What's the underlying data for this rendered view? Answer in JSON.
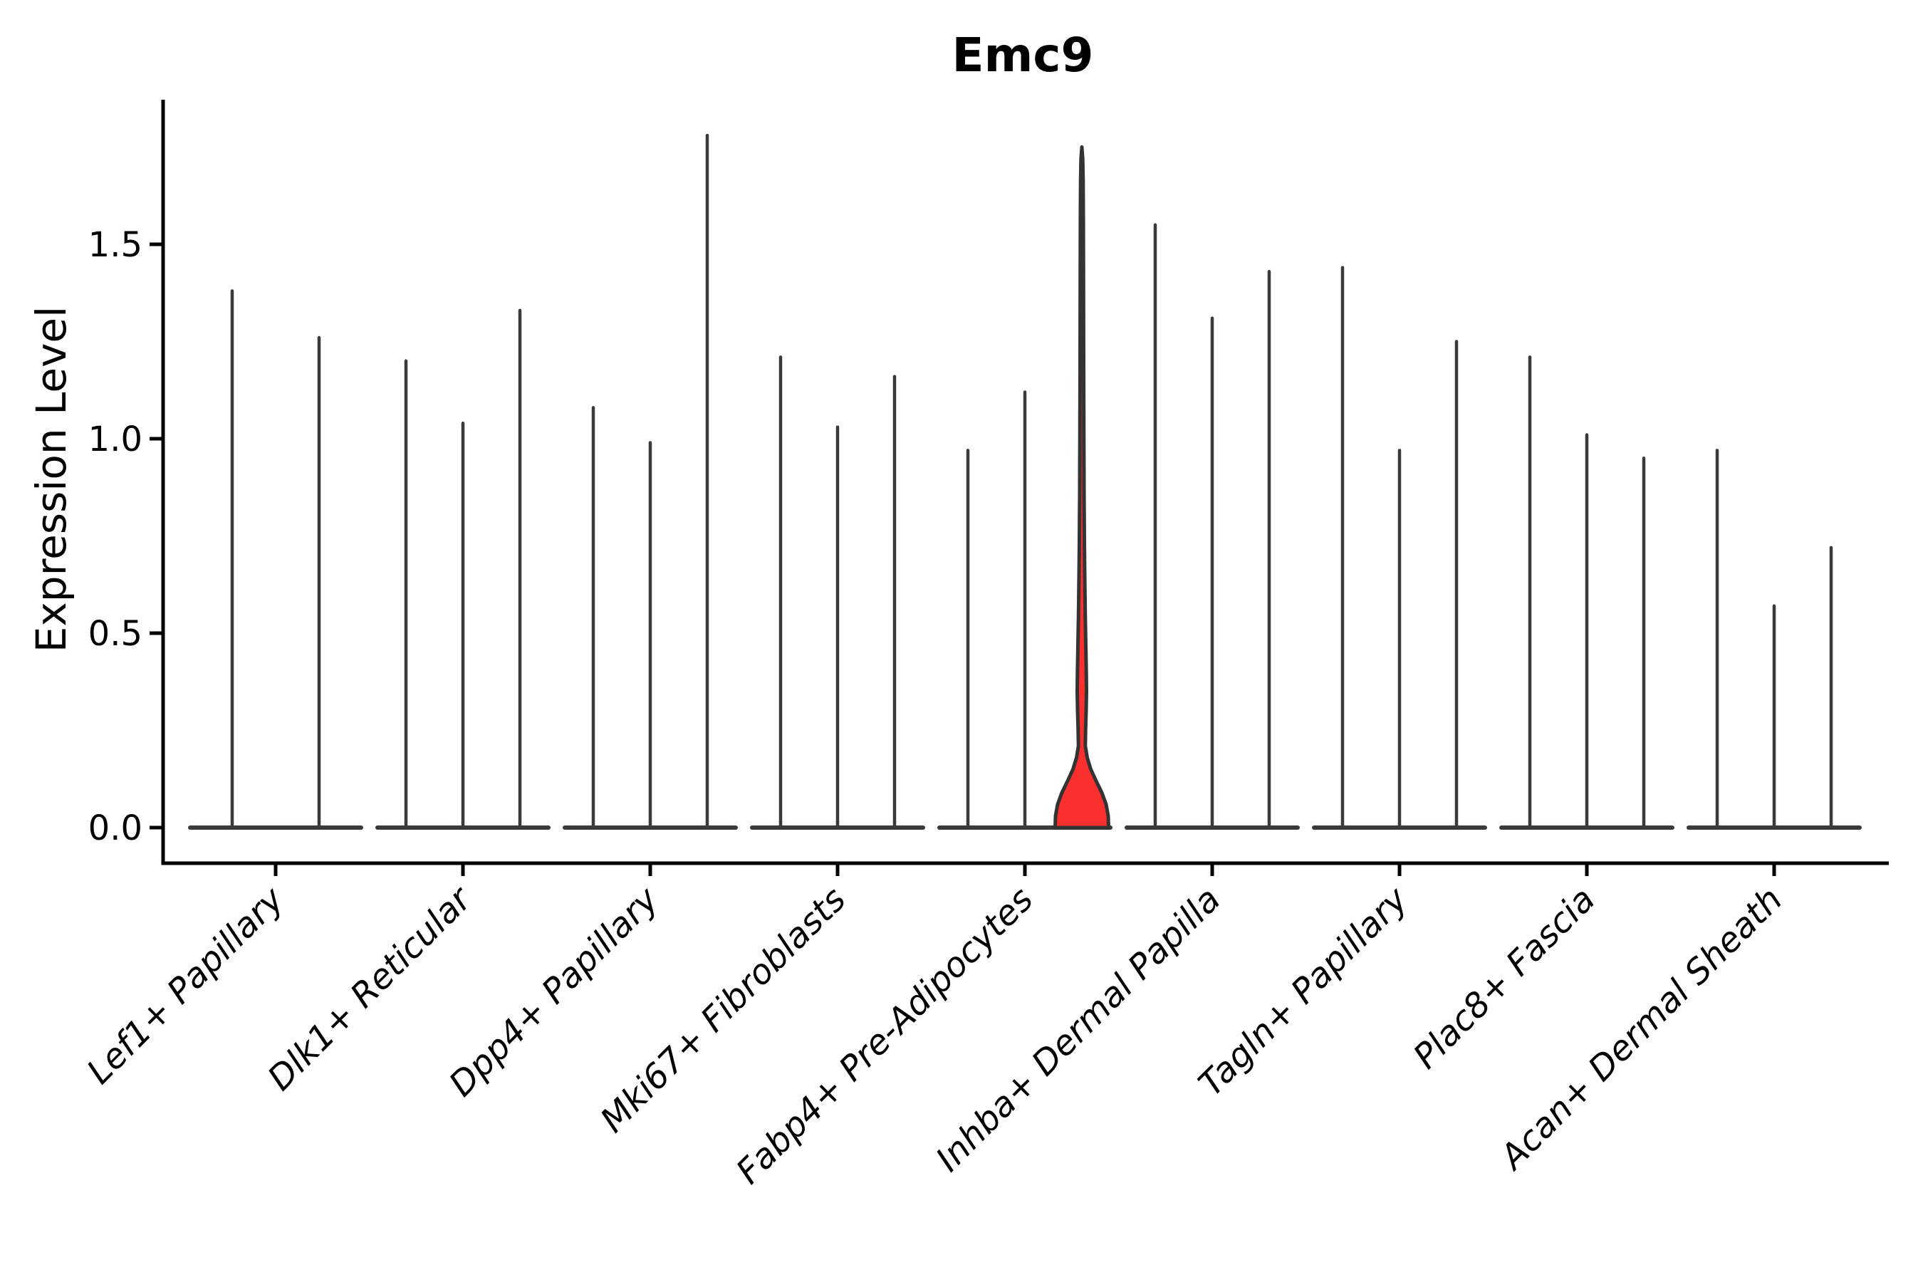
{
  "chart_data": {
    "type": "violin",
    "title": "Emc9",
    "ylabel": "Expression Level",
    "xlabel": "",
    "grid": false,
    "legend": false,
    "yticks": [
      "0.0",
      "0.5",
      "1.0",
      "1.5"
    ],
    "ylim": [
      -0.09,
      1.87
    ],
    "categories": [
      "Lef1+ Papillary",
      "Dlk1+ Reticular",
      "Dpp4+ Papillary",
      "Mki67+ Fibroblasts",
      "Fabp4+ Pre-Adipocytes",
      "Inhba+ Dermal Papilla",
      "Tagln+ Papillary",
      "Plac8+ Fascia",
      "Acan+ Dermal Sheath"
    ],
    "groups": [
      {
        "category": "Lef1+ Papillary",
        "violins": [
          {
            "max": 1.38
          },
          {
            "max": 1.26
          }
        ]
      },
      {
        "category": "Dlk1+ Reticular",
        "violins": [
          {
            "max": 1.2
          },
          {
            "max": 1.04
          },
          {
            "max": 1.33
          }
        ]
      },
      {
        "category": "Dpp4+ Papillary",
        "violins": [
          {
            "max": 1.08
          },
          {
            "max": 0.99
          },
          {
            "max": 1.78
          }
        ]
      },
      {
        "category": "Mki67+ Fibroblasts",
        "violins": [
          {
            "max": 1.21
          },
          {
            "max": 1.03
          },
          {
            "max": 1.16
          }
        ]
      },
      {
        "category": "Fabp4+ Pre-Adipocytes",
        "violins": [
          {
            "max": 0.97
          },
          {
            "max": 1.12
          },
          {
            "max": 1.75,
            "highlight": true
          }
        ]
      },
      {
        "category": "Inhba+ Dermal Papilla",
        "violins": [
          {
            "max": 1.55
          },
          {
            "max": 1.31
          },
          {
            "max": 1.43
          }
        ]
      },
      {
        "category": "Tagln+ Papillary",
        "violins": [
          {
            "max": 1.44
          },
          {
            "max": 0.97
          },
          {
            "max": 1.25
          }
        ]
      },
      {
        "category": "Plac8+ Fascia",
        "violins": [
          {
            "max": 1.21
          },
          {
            "max": 1.01
          },
          {
            "max": 0.95
          }
        ]
      },
      {
        "category": "Acan+ Dermal Sheath",
        "violins": [
          {
            "max": 0.97
          },
          {
            "max": 0.57
          },
          {
            "max": 0.72
          }
        ]
      }
    ],
    "highlight_violin": {
      "category": "Fabp4+ Pre-Adipocytes",
      "position_in_group": 3,
      "max": 1.75,
      "profile_value_halfwidth": [
        [
          0.0,
          37.5
        ],
        [
          0.03,
          37.0
        ],
        [
          0.06,
          34.0
        ],
        [
          0.09,
          28.0
        ],
        [
          0.12,
          20.0
        ],
        [
          0.15,
          12.5
        ],
        [
          0.18,
          7.5
        ],
        [
          0.21,
          4.8
        ],
        [
          0.25,
          5.2
        ],
        [
          0.3,
          6.0
        ],
        [
          0.35,
          6.5
        ],
        [
          0.4,
          6.2
        ],
        [
          0.46,
          5.6
        ],
        [
          0.54,
          4.8
        ],
        [
          0.62,
          4.2
        ],
        [
          0.72,
          3.6
        ],
        [
          0.85,
          3.1
        ],
        [
          1.0,
          2.8
        ],
        [
          1.2,
          2.5
        ],
        [
          1.4,
          2.3
        ],
        [
          1.55,
          2.1
        ],
        [
          1.66,
          1.8
        ],
        [
          1.72,
          1.2
        ],
        [
          1.75,
          0.0
        ]
      ]
    },
    "colors": {
      "background": "#ffffff",
      "highlight_fill": "#fc2f2f",
      "violin_stroke": "#3a3a3a",
      "highlight_stroke": "#333333",
      "axis": "#000000",
      "text": "#000000"
    }
  }
}
